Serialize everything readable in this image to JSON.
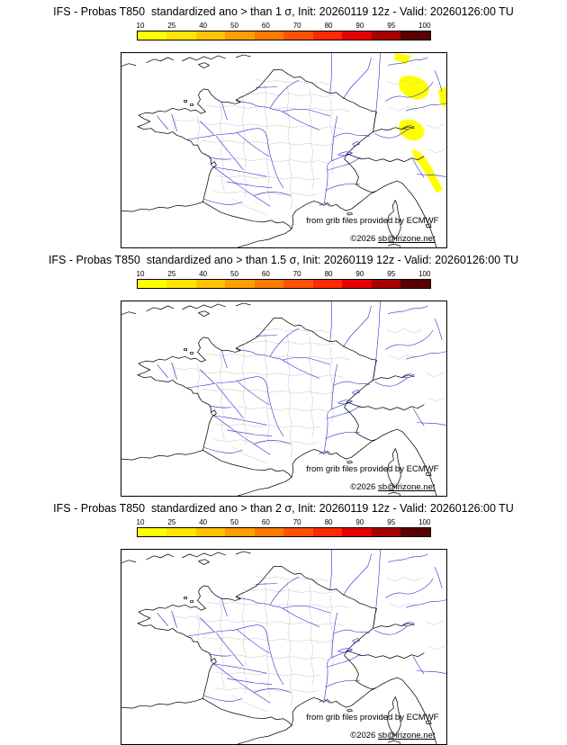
{
  "panels": [
    {
      "id": "prob-gt-1-sigma",
      "title": "IFS - Probas T850  standardized ano > than 1 σ, Init: 20260119 12z - Valid: 20260126:00 TU"
    },
    {
      "id": "prob-gt-1p5-sigma",
      "title": "IFS - Probas T850  standardized ano > than 1.5 σ, Init: 20260119 12z - Valid: 20260126:00 TU"
    },
    {
      "id": "prob-gt-2-sigma",
      "title": "IFS - Probas T850  standardized ano > than 2 σ, Init: 20260119 12z - Valid: 20260126:00 TU"
    }
  ],
  "colorbar": {
    "ticks": [
      "10",
      "25",
      "40",
      "50",
      "60",
      "70",
      "80",
      "90",
      "95",
      "100"
    ],
    "colors": [
      "#ffff00",
      "#ffe600",
      "#ffc400",
      "#ff9e00",
      "#ff7a00",
      "#ff5200",
      "#ff2a00",
      "#e60000",
      "#a80000",
      "#5a0000"
    ]
  },
  "credits": {
    "provider": "from grib files provided by ECMWF",
    "copyright_prefix": "©2026 ",
    "copyright_link": "sb@irizone.net"
  },
  "shading": {
    "panel_1": {
      "color": "#ffff00",
      "value_band": "10–25 %",
      "areas": "patches along NE map edge (SW Germany / N Switzerland) and down the NW Italian coast"
    },
    "panel_2": "none visible",
    "panel_3": "none visible"
  }
}
